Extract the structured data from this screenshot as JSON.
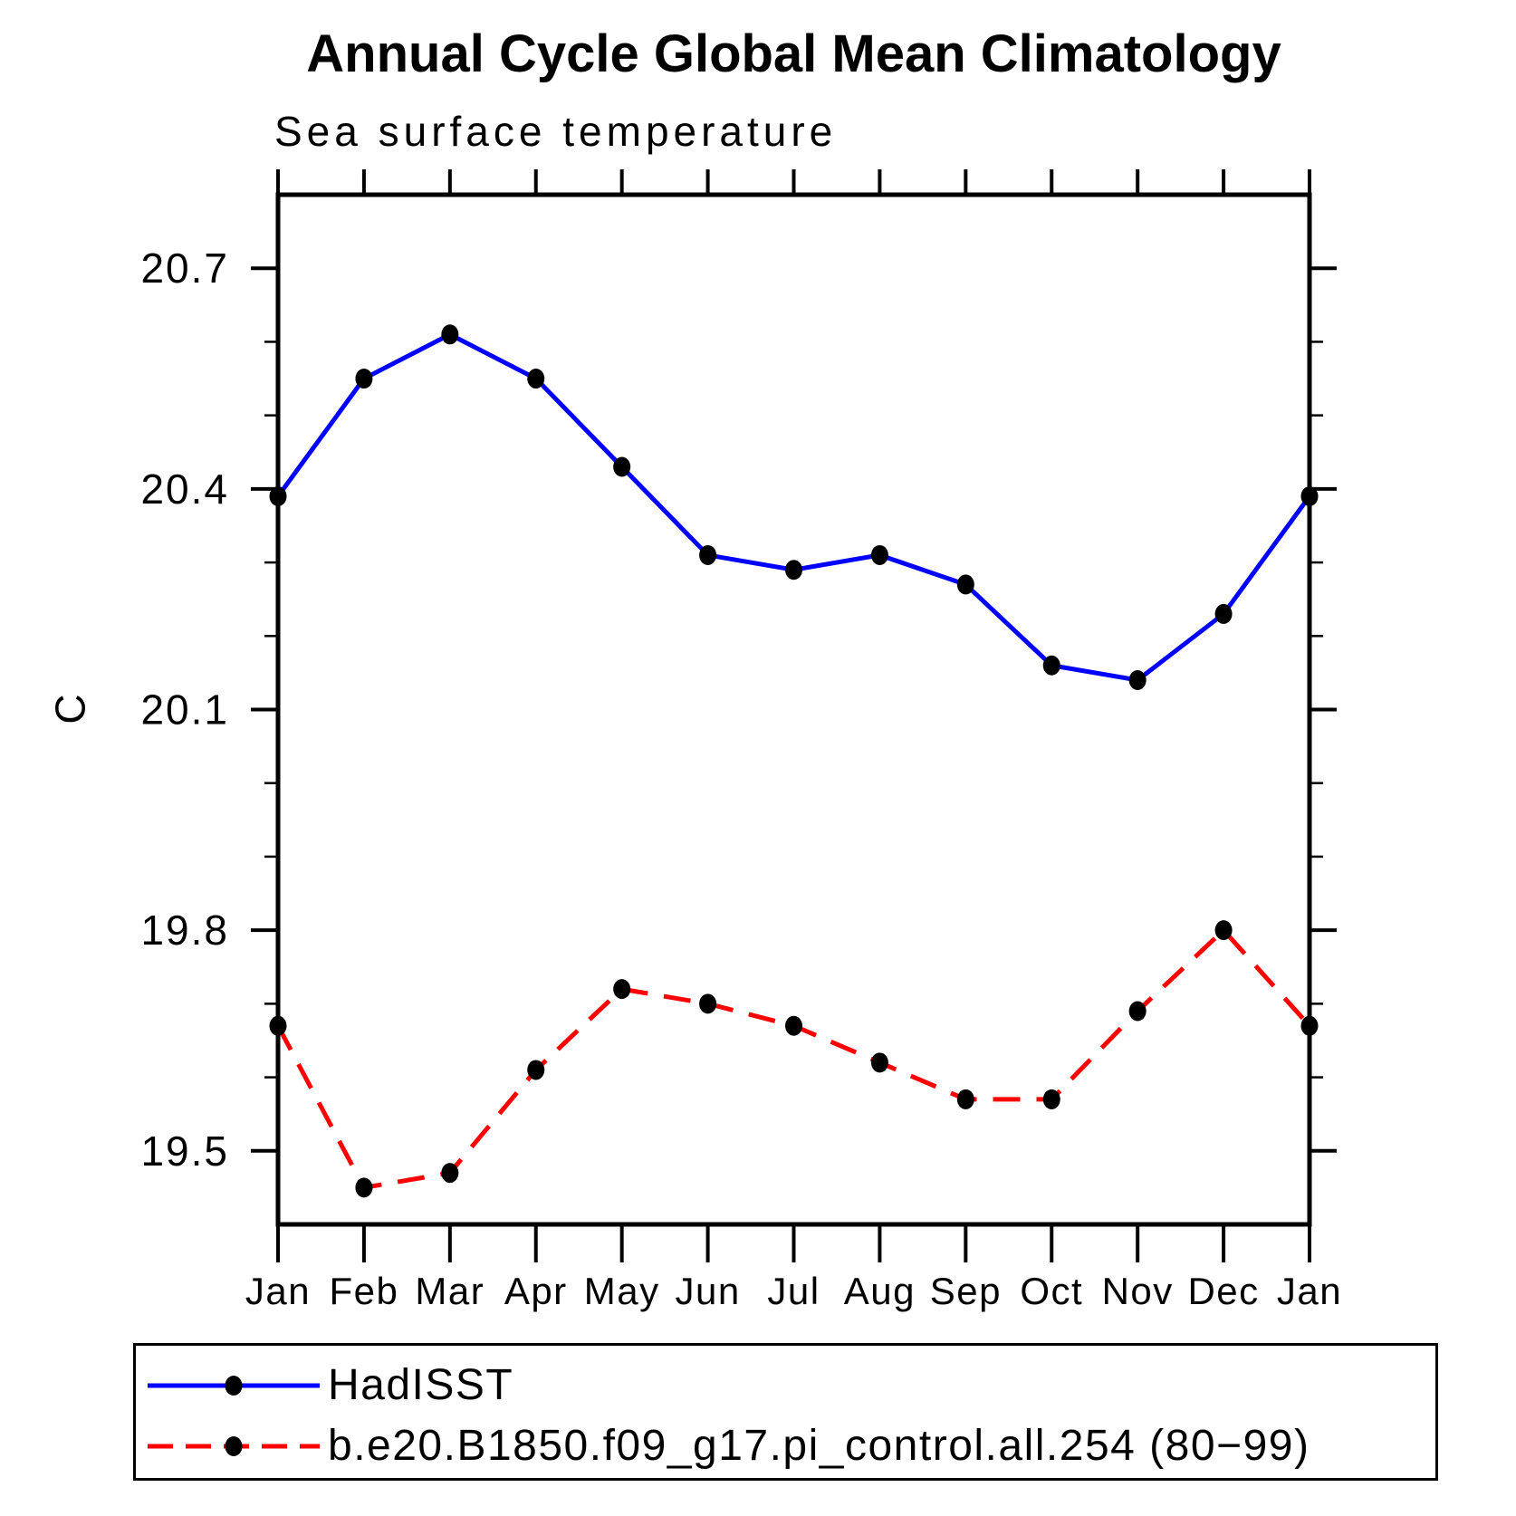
{
  "chart_data": {
    "type": "line",
    "title": "Annual Cycle Global Mean Climatology",
    "subtitle": "Sea surface temperature",
    "ylabel": "C",
    "xlabel": "",
    "categories": [
      "Jan",
      "Feb",
      "Mar",
      "Apr",
      "May",
      "Jun",
      "Jul",
      "Aug",
      "Sep",
      "Oct",
      "Nov",
      "Dec",
      "Jan"
    ],
    "series": [
      {
        "name": "HadISST",
        "color": "#0000ff",
        "line_style": "solid",
        "marker": "filled-black-circle",
        "values": [
          20.39,
          20.55,
          20.61,
          20.55,
          20.43,
          20.31,
          20.29,
          20.31,
          20.27,
          20.16,
          20.14,
          20.23,
          20.39
        ]
      },
      {
        "name": "b.e20.B1850.f09_g17.pi_control.all.254 (80−99)",
        "color": "#ff0000",
        "line_style": "dashed",
        "marker": "filled-black-circle",
        "values": [
          19.67,
          19.45,
          19.47,
          19.61,
          19.72,
          19.7,
          19.67,
          19.62,
          19.57,
          19.57,
          19.69,
          19.8,
          19.67
        ]
      }
    ],
    "ylim": [
      19.4,
      20.8
    ],
    "y_major_ticks": [
      19.5,
      19.8,
      20.1,
      20.4,
      20.7
    ],
    "y_minor_step": 0.1,
    "grid": false,
    "axis_color": "#000000",
    "text_color": "#000000",
    "legend_position": "bottom-box"
  }
}
